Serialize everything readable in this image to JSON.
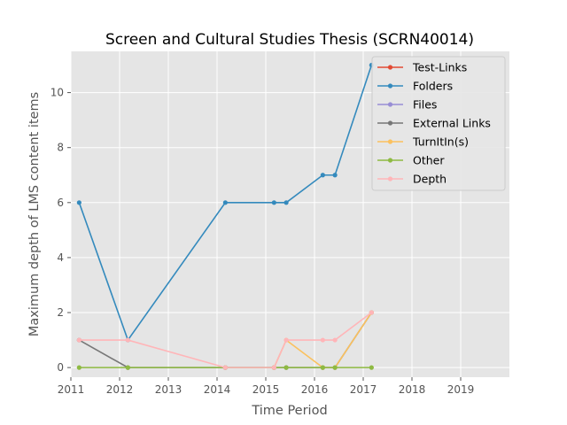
{
  "chart_data": {
    "type": "line",
    "title": "Screen and Cultural Studies Thesis (SCRN40014)",
    "xlabel": "Time Period",
    "ylabel": "Maximum depth of LMS content items",
    "xlim": [
      2011,
      2020
    ],
    "ylim": [
      -0.35,
      11.5
    ],
    "xticks": [
      2011,
      2012,
      2013,
      2014,
      2015,
      2016,
      2017,
      2018,
      2019
    ],
    "yticks": [
      0,
      2,
      4,
      6,
      8,
      10
    ],
    "grid": true,
    "legend_position": "top-right",
    "series": [
      {
        "name": "Test-Links",
        "color": "#E24A33",
        "x": [],
        "y": []
      },
      {
        "name": "Folders",
        "color": "#348ABD",
        "x": [
          2011.17,
          2012.17,
          2014.17,
          2015.17,
          2015.42,
          2016.17,
          2016.42,
          2017.17
        ],
        "y": [
          6,
          1,
          6,
          6,
          6,
          7,
          7,
          11
        ]
      },
      {
        "name": "Files",
        "color": "#988ED5",
        "x": [],
        "y": []
      },
      {
        "name": "External Links",
        "color": "#777777",
        "x": [
          2011.17,
          2012.17,
          2014.17,
          2015.17,
          2015.42,
          2016.17,
          2016.42,
          2017.17
        ],
        "y": [
          1,
          0,
          0,
          0,
          0,
          0,
          0,
          2
        ]
      },
      {
        "name": "TurnItIn(s)",
        "color": "#FBC15E",
        "x": [
          2015.17,
          2015.42,
          2016.17,
          2016.42,
          2017.17
        ],
        "y": [
          0,
          1,
          0,
          0,
          2
        ]
      },
      {
        "name": "Other",
        "color": "#8EBA42",
        "x": [
          2011.17,
          2012.17,
          2014.17,
          2015.17,
          2015.42,
          2016.17,
          2016.42,
          2017.17
        ],
        "y": [
          0,
          0,
          0,
          0,
          0,
          0,
          0,
          0
        ]
      },
      {
        "name": "Depth",
        "color": "#FFB5B8",
        "x": [
          2011.17,
          2012.17,
          2014.17,
          2015.17,
          2015.42,
          2016.17,
          2016.42,
          2017.17
        ],
        "y": [
          1,
          1,
          0,
          0,
          1,
          1,
          1,
          2
        ]
      }
    ]
  }
}
